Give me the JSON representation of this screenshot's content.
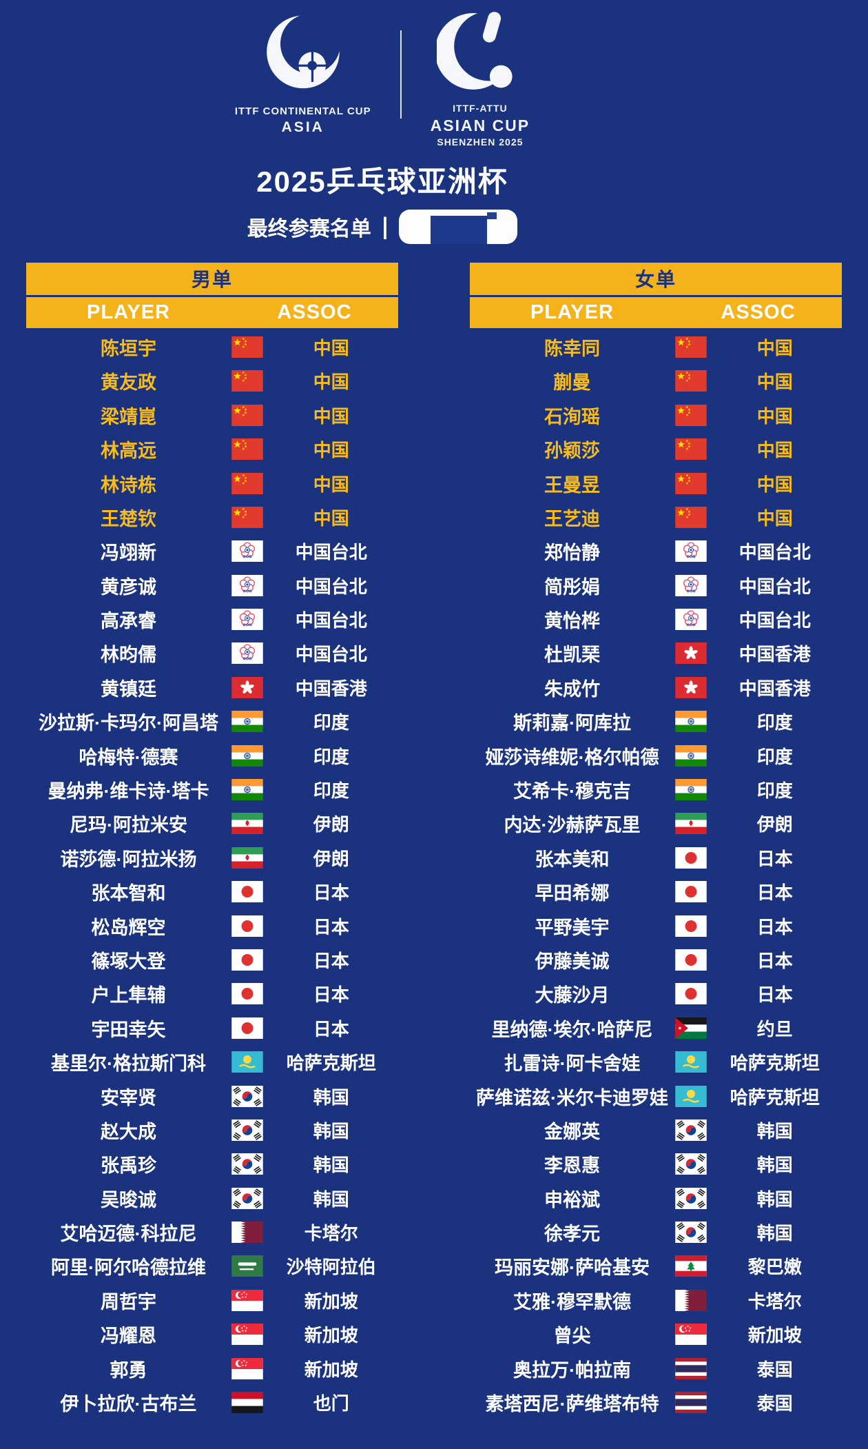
{
  "colors": {
    "navy": "#1B337F",
    "gold": "#F5B31B",
    "gold_text": "#F7BC1C",
    "china_red": "#E23A2C"
  },
  "header": {
    "logo_left": {
      "line1": "ITTF CONTINENTAL CUP",
      "line2": "ASIA"
    },
    "logo_right": {
      "line1": "ITTF-ATTU",
      "line2": "ASIAN CUP",
      "line3": "SHENZHEN 2025"
    },
    "title": "2025乒乓球亚洲杯",
    "subtitle": "最终参赛名单",
    "divider": "|"
  },
  "tables": [
    {
      "section_title": "男单",
      "col_player": "PLAYER",
      "col_assoc": "ASSOC",
      "rows": [
        {
          "player": "陈垣宇",
          "flag": "CHN",
          "assoc": "中国"
        },
        {
          "player": "黄友政",
          "flag": "CHN",
          "assoc": "中国"
        },
        {
          "player": "梁靖崑",
          "flag": "CHN",
          "assoc": "中国"
        },
        {
          "player": "林高远",
          "flag": "CHN",
          "assoc": "中国"
        },
        {
          "player": "林诗栋",
          "flag": "CHN",
          "assoc": "中国"
        },
        {
          "player": "王楚钦",
          "flag": "CHN",
          "assoc": "中国"
        },
        {
          "player": "冯翊新",
          "flag": "TPE",
          "assoc": "中国台北"
        },
        {
          "player": "黄彦诚",
          "flag": "TPE",
          "assoc": "中国台北"
        },
        {
          "player": "高承睿",
          "flag": "TPE",
          "assoc": "中国台北"
        },
        {
          "player": "林昀儒",
          "flag": "TPE",
          "assoc": "中国台北"
        },
        {
          "player": "黄镇廷",
          "flag": "HKG",
          "assoc": "中国香港"
        },
        {
          "player": "沙拉斯·卡玛尔·阿昌塔",
          "flag": "IND",
          "assoc": "印度"
        },
        {
          "player": "哈梅特·德赛",
          "flag": "IND",
          "assoc": "印度"
        },
        {
          "player": "曼纳弗·维卡诗·塔卡",
          "flag": "IND",
          "assoc": "印度"
        },
        {
          "player": "尼玛·阿拉米安",
          "flag": "IRI",
          "assoc": "伊朗"
        },
        {
          "player": "诺莎德·阿拉米扬",
          "flag": "IRI",
          "assoc": "伊朗"
        },
        {
          "player": "张本智和",
          "flag": "JPN",
          "assoc": "日本"
        },
        {
          "player": "松岛辉空",
          "flag": "JPN",
          "assoc": "日本"
        },
        {
          "player": "篠塚大登",
          "flag": "JPN",
          "assoc": "日本"
        },
        {
          "player": "户上隼辅",
          "flag": "JPN",
          "assoc": "日本"
        },
        {
          "player": "宇田幸矢",
          "flag": "JPN",
          "assoc": "日本"
        },
        {
          "player": "基里尔·格拉斯门科",
          "flag": "KAZ",
          "assoc": "哈萨克斯坦"
        },
        {
          "player": "安宰贤",
          "flag": "KOR",
          "assoc": "韩国"
        },
        {
          "player": "赵大成",
          "flag": "KOR",
          "assoc": "韩国"
        },
        {
          "player": "张禹珍",
          "flag": "KOR",
          "assoc": "韩国"
        },
        {
          "player": "吴晙诚",
          "flag": "KOR",
          "assoc": "韩国"
        },
        {
          "player": "艾哈迈德·科拉尼",
          "flag": "QAT",
          "assoc": "卡塔尔"
        },
        {
          "player": "阿里·阿尔哈德拉维",
          "flag": "KSA",
          "assoc": "沙特阿拉伯"
        },
        {
          "player": "周哲宇",
          "flag": "SGP",
          "assoc": "新加坡"
        },
        {
          "player": "冯耀恩",
          "flag": "SGP",
          "assoc": "新加坡"
        },
        {
          "player": "郭勇",
          "flag": "SGP",
          "assoc": "新加坡"
        },
        {
          "player": "伊卜拉欣·古布兰",
          "flag": "YEM",
          "assoc": "也门"
        }
      ]
    },
    {
      "section_title": "女单",
      "col_player": "PLAYER",
      "col_assoc": "ASSOC",
      "rows": [
        {
          "player": "陈幸同",
          "flag": "CHN",
          "assoc": "中国"
        },
        {
          "player": "蒯曼",
          "flag": "CHN",
          "assoc": "中国"
        },
        {
          "player": "石洵瑶",
          "flag": "CHN",
          "assoc": "中国"
        },
        {
          "player": "孙颖莎",
          "flag": "CHN",
          "assoc": "中国"
        },
        {
          "player": "王曼昱",
          "flag": "CHN",
          "assoc": "中国"
        },
        {
          "player": "王艺迪",
          "flag": "CHN",
          "assoc": "中国"
        },
        {
          "player": "郑怡静",
          "flag": "TPE",
          "assoc": "中国台北"
        },
        {
          "player": "简彤娟",
          "flag": "TPE",
          "assoc": "中国台北"
        },
        {
          "player": "黄怡桦",
          "flag": "TPE",
          "assoc": "中国台北"
        },
        {
          "player": "杜凯琹",
          "flag": "HKG",
          "assoc": "中国香港"
        },
        {
          "player": "朱成竹",
          "flag": "HKG",
          "assoc": "中国香港"
        },
        {
          "player": "斯莉嘉·阿库拉",
          "flag": "IND",
          "assoc": "印度"
        },
        {
          "player": "娅莎诗维妮·格尔帕德",
          "flag": "IND",
          "assoc": "印度"
        },
        {
          "player": "艾希卡·穆克吉",
          "flag": "IND",
          "assoc": "印度"
        },
        {
          "player": "内达·沙赫萨瓦里",
          "flag": "IRI",
          "assoc": "伊朗"
        },
        {
          "player": "张本美和",
          "flag": "JPN",
          "assoc": "日本"
        },
        {
          "player": "早田希娜",
          "flag": "JPN",
          "assoc": "日本"
        },
        {
          "player": "平野美宇",
          "flag": "JPN",
          "assoc": "日本"
        },
        {
          "player": "伊藤美诚",
          "flag": "JPN",
          "assoc": "日本"
        },
        {
          "player": "大藤沙月",
          "flag": "JPN",
          "assoc": "日本"
        },
        {
          "player": "里纳德·埃尔·哈萨尼",
          "flag": "JOR",
          "assoc": "约旦"
        },
        {
          "player": "扎雷诗·阿卡舍娃",
          "flag": "KAZ",
          "assoc": "哈萨克斯坦"
        },
        {
          "player": "萨维诺兹·米尔卡迪罗娃",
          "flag": "KAZ",
          "assoc": "哈萨克斯坦"
        },
        {
          "player": "金娜英",
          "flag": "KOR",
          "assoc": "韩国"
        },
        {
          "player": "李恩惠",
          "flag": "KOR",
          "assoc": "韩国"
        },
        {
          "player": "申裕斌",
          "flag": "KOR",
          "assoc": "韩国"
        },
        {
          "player": "徐孝元",
          "flag": "KOR",
          "assoc": "韩国"
        },
        {
          "player": "玛丽安娜·萨哈基安",
          "flag": "LBN",
          "assoc": "黎巴嫩"
        },
        {
          "player": "艾雅·穆罕默德",
          "flag": "QAT",
          "assoc": "卡塔尔"
        },
        {
          "player": "曾尖",
          "flag": "SGP",
          "assoc": "新加坡"
        },
        {
          "player": "奥拉万·帕拉南",
          "flag": "THA",
          "assoc": "泰国"
        },
        {
          "player": "素塔西尼·萨维塔布特",
          "flag": "THA",
          "assoc": "泰国"
        }
      ]
    }
  ]
}
